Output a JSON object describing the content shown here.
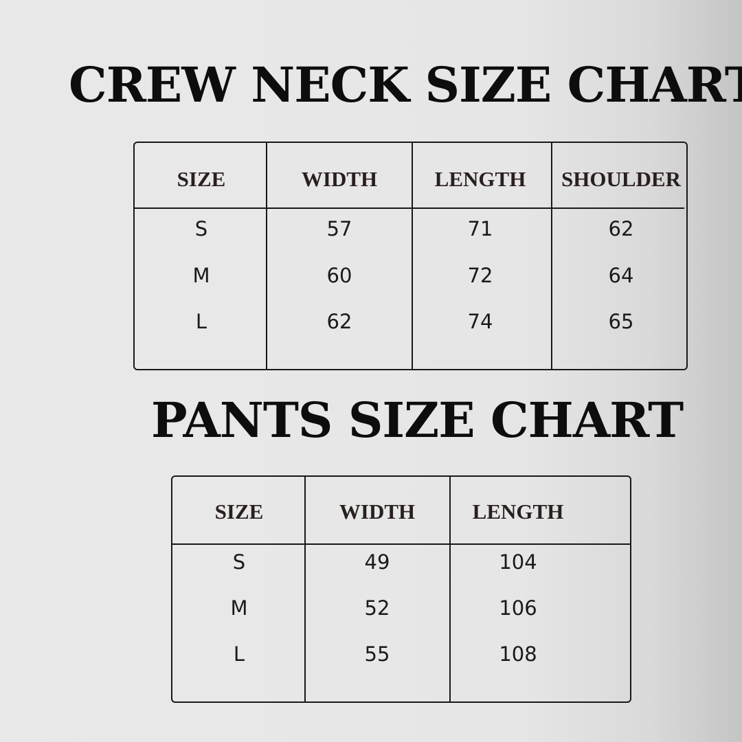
{
  "crew_neck": {
    "title": "CREW NECK SIZE CHART",
    "headers": [
      "SIZE",
      "WIDTH",
      "LENGTH",
      "SHOULDER"
    ],
    "rows": [
      [
        "S",
        "57",
        "71",
        "62"
      ],
      [
        "M",
        "60",
        "72",
        "64"
      ],
      [
        "L",
        "62",
        "74",
        "65"
      ]
    ]
  },
  "pants": {
    "title": "PANTS SIZE CHART",
    "headers": [
      "SIZE",
      "WIDTH",
      "LENGTH"
    ],
    "rows": [
      [
        "S",
        "49",
        "104"
      ],
      [
        "M",
        "52",
        "106"
      ],
      [
        "L",
        "55",
        "108"
      ]
    ]
  }
}
